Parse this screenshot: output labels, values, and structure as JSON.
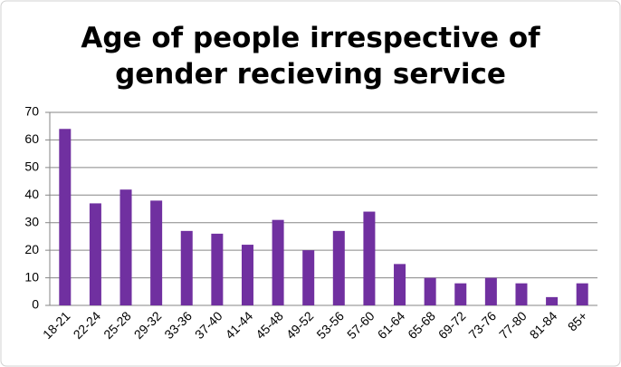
{
  "chart_data": {
    "type": "bar",
    "title": "Age of people irrespective of gender recieving service",
    "categories": [
      "18-21",
      "22-24",
      "25-28",
      "29-32",
      "33-36",
      "37-40",
      "41-44",
      "45-48",
      "49-52",
      "53-56",
      "57-60",
      "61-64",
      "65-68",
      "69-72",
      "73-76",
      "77-80",
      "81-84",
      "85+"
    ],
    "values": [
      64,
      37,
      42,
      38,
      27,
      26,
      22,
      31,
      20,
      27,
      34,
      15,
      10,
      8,
      10,
      8,
      3,
      8
    ],
    "color": "#7030a0",
    "ylim": [
      0,
      70
    ],
    "yticks": [
      0,
      10,
      20,
      30,
      40,
      50,
      60,
      70
    ],
    "grid": true
  }
}
